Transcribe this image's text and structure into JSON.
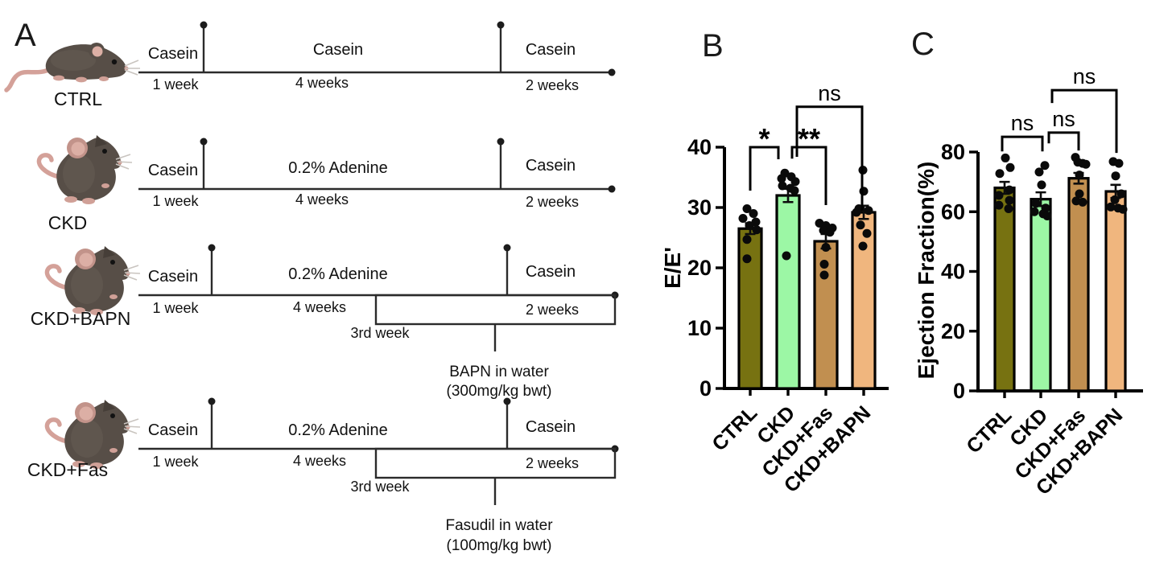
{
  "panels": {
    "a_label": "A",
    "b_label": "B",
    "c_label": "C"
  },
  "timeline": {
    "groups": [
      {
        "name": "CTRL",
        "segments": [
          "Casein",
          "Casein",
          "Casein"
        ],
        "durations": [
          "1 week",
          "4 weeks",
          "2 weeks"
        ]
      },
      {
        "name": "CKD",
        "segments": [
          "Casein",
          "0.2% Adenine",
          "Casein"
        ],
        "durations": [
          "1 week",
          "4 weeks",
          "2 weeks"
        ]
      },
      {
        "name": "CKD+BAPN",
        "segments": [
          "Casein",
          "0.2% Adenine",
          "Casein"
        ],
        "durations": [
          "1 week",
          "4 weeks",
          "2 weeks"
        ],
        "treatment_start": "3rd week",
        "treatment": [
          "BAPN in water",
          "(300mg/kg bwt)"
        ]
      },
      {
        "name": "CKD+Fas",
        "segments": [
          "Casein",
          "0.2% Adenine",
          "Casein"
        ],
        "durations": [
          "1 week",
          "4 weeks",
          "2 weeks"
        ],
        "treatment_start": "3rd week",
        "treatment": [
          "Fasudil in water",
          "(100mg/kg bwt)"
        ]
      }
    ]
  },
  "chart_data": [
    {
      "id": "B",
      "type": "bar",
      "title": "",
      "xlabel": "",
      "ylabel": "E/E'",
      "ylim": [
        0,
        40
      ],
      "yticks": [
        0,
        10,
        20,
        30,
        40
      ],
      "grid": false,
      "legend": null,
      "categories": [
        "CTRL",
        "CKD",
        "CKD+Fas",
        "CKD+BAPN"
      ],
      "values": [
        26.5,
        32.0,
        24.4,
        29.2
      ],
      "errors": [
        0.9,
        1.1,
        1.2,
        1.1
      ],
      "bar_colors": [
        "#777211",
        "#9CF7A5",
        "#C18F50",
        "#F0B67E"
      ],
      "points": [
        [
          [
            29.8,
            -4
          ],
          [
            29.0,
            4
          ],
          [
            28.2,
            -9
          ],
          [
            27.6,
            7
          ],
          [
            27.0,
            -1
          ],
          [
            26.3,
            8
          ],
          [
            24.7,
            -4
          ],
          [
            21.5,
            -4
          ]
        ],
        [
          [
            35.7,
            -4
          ],
          [
            35.1,
            4
          ],
          [
            34.8,
            -8
          ],
          [
            34.3,
            9
          ],
          [
            33.6,
            -7
          ],
          [
            33.2,
            3
          ],
          [
            32.8,
            8
          ],
          [
            22.0,
            -2
          ]
        ],
        [
          [
            27.4,
            -8
          ],
          [
            27.0,
            0
          ],
          [
            26.6,
            8
          ],
          [
            26.2,
            -3
          ],
          [
            25.9,
            5
          ],
          [
            23.4,
            0
          ],
          [
            20.6,
            -2
          ],
          [
            18.8,
            -2
          ]
        ],
        [
          [
            36.2,
            -1
          ],
          [
            32.7,
            0
          ],
          [
            29.8,
            -6
          ],
          [
            29.5,
            6
          ],
          [
            29.2,
            -9
          ],
          [
            27.1,
            -4
          ],
          [
            25.7,
            4
          ],
          [
            23.6,
            -1
          ]
        ]
      ],
      "significance": [
        {
          "from": 0,
          "to": 1,
          "label": "*",
          "top": 40.0,
          "left_drop": 32.8,
          "right_drop": 38.0,
          "left_dx": 0,
          "right_dx": -12
        },
        {
          "from": 1,
          "to": 2,
          "label": "**",
          "top": 40.0,
          "left_drop": 38.1,
          "right_drop": 30.4,
          "left_dx": 5,
          "right_dx": 0
        },
        {
          "from": 1,
          "to": 3,
          "label": "ns",
          "top": 46.7,
          "left_drop": 38.4,
          "right_drop": 29.5,
          "left_dx": 11,
          "right_dx": -2
        }
      ]
    },
    {
      "id": "C",
      "type": "bar",
      "title": "",
      "xlabel": "",
      "ylabel": "Ejection Fraction(%)",
      "ylim": [
        0,
        80
      ],
      "yticks": [
        0,
        20,
        40,
        60,
        80
      ],
      "grid": false,
      "legend": null,
      "categories": [
        "CTRL",
        "CKD",
        "CKD+Fas",
        "CKD+BAPN"
      ],
      "values": [
        68.0,
        64.2,
        71.2,
        66.8
      ],
      "errors": [
        2.0,
        2.3,
        1.8,
        2.2
      ],
      "bar_colors": [
        "#777211",
        "#9CF7A5",
        "#C18F50",
        "#F0B67E"
      ],
      "points": [
        [
          [
            78.0,
            1
          ],
          [
            74.8,
            7
          ],
          [
            72.8,
            -6
          ],
          [
            67.3,
            6
          ],
          [
            65.5,
            -7
          ],
          [
            63.8,
            6
          ],
          [
            62.2,
            -7
          ],
          [
            61.0,
            5
          ]
        ],
        [
          [
            75.5,
            5
          ],
          [
            73.3,
            -2
          ],
          [
            69.0,
            1
          ],
          [
            62.8,
            -6
          ],
          [
            61.2,
            6
          ],
          [
            60.0,
            -8
          ],
          [
            59.3,
            3
          ],
          [
            58.6,
            8
          ]
        ],
        [
          [
            78.2,
            -4
          ],
          [
            76.6,
            -1
          ],
          [
            76.2,
            5
          ],
          [
            75.9,
            9
          ],
          [
            72.3,
            1
          ],
          [
            66.0,
            1
          ],
          [
            63.6,
            -3
          ],
          [
            63.2,
            5
          ]
        ],
        [
          [
            76.8,
            -3
          ],
          [
            76.2,
            4
          ],
          [
            72.0,
            0
          ],
          [
            66.0,
            7
          ],
          [
            64.0,
            -1
          ],
          [
            61.6,
            -6
          ],
          [
            61.2,
            3
          ],
          [
            60.8,
            9
          ]
        ]
      ],
      "significance": [
        {
          "from": 0,
          "to": 1,
          "label": "ns",
          "top": 85.1,
          "left_drop": 80.2,
          "right_drop": 80.2,
          "left_dx": -3,
          "right_dx": 2
        },
        {
          "from": 1,
          "to": 2,
          "label": "ns",
          "top": 86.5,
          "left_drop": 82.9,
          "right_drop": 80.5,
          "left_dx": 10,
          "right_dx": 0
        },
        {
          "from": 1,
          "to": 3,
          "label": "ns",
          "top": 100.7,
          "left_drop": 96.4,
          "right_drop": 79.7,
          "left_dx": 14,
          "right_dx": 1
        }
      ]
    }
  ]
}
